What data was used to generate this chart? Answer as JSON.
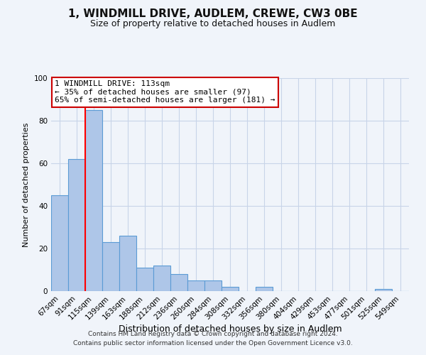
{
  "title": "1, WINDMILL DRIVE, AUDLEM, CREWE, CW3 0BE",
  "subtitle": "Size of property relative to detached houses in Audlem",
  "xlabel": "Distribution of detached houses by size in Audlem",
  "ylabel": "Number of detached properties",
  "bar_labels": [
    "67sqm",
    "91sqm",
    "115sqm",
    "139sqm",
    "163sqm",
    "188sqm",
    "212sqm",
    "236sqm",
    "260sqm",
    "284sqm",
    "308sqm",
    "332sqm",
    "356sqm",
    "380sqm",
    "404sqm",
    "429sqm",
    "453sqm",
    "477sqm",
    "501sqm",
    "525sqm",
    "549sqm"
  ],
  "bar_values": [
    45,
    62,
    85,
    23,
    26,
    11,
    12,
    8,
    5,
    5,
    2,
    0,
    2,
    0,
    0,
    0,
    0,
    0,
    0,
    1,
    0
  ],
  "bar_color": "#aec6e8",
  "bar_edge_color": "#5b9bd5",
  "bar_edge_width": 0.8,
  "ylim": [
    0,
    100
  ],
  "red_line_index": 2,
  "annotation_title": "1 WINDMILL DRIVE: 113sqm",
  "annotation_line1": "← 35% of detached houses are smaller (97)",
  "annotation_line2": "65% of semi-detached houses are larger (181) →",
  "annotation_box_color": "#ffffff",
  "annotation_box_edge_color": "#cc0000",
  "grid_color": "#c8d4e8",
  "background_color": "#f0f4fa",
  "footer_line1": "Contains HM Land Registry data © Crown copyright and database right 2024.",
  "footer_line2": "Contains public sector information licensed under the Open Government Licence v3.0.",
  "title_fontsize": 11,
  "subtitle_fontsize": 9,
  "ylabel_fontsize": 8,
  "xlabel_fontsize": 9,
  "tick_fontsize": 7.5,
  "annotation_fontsize": 8,
  "footer_fontsize": 6.5
}
